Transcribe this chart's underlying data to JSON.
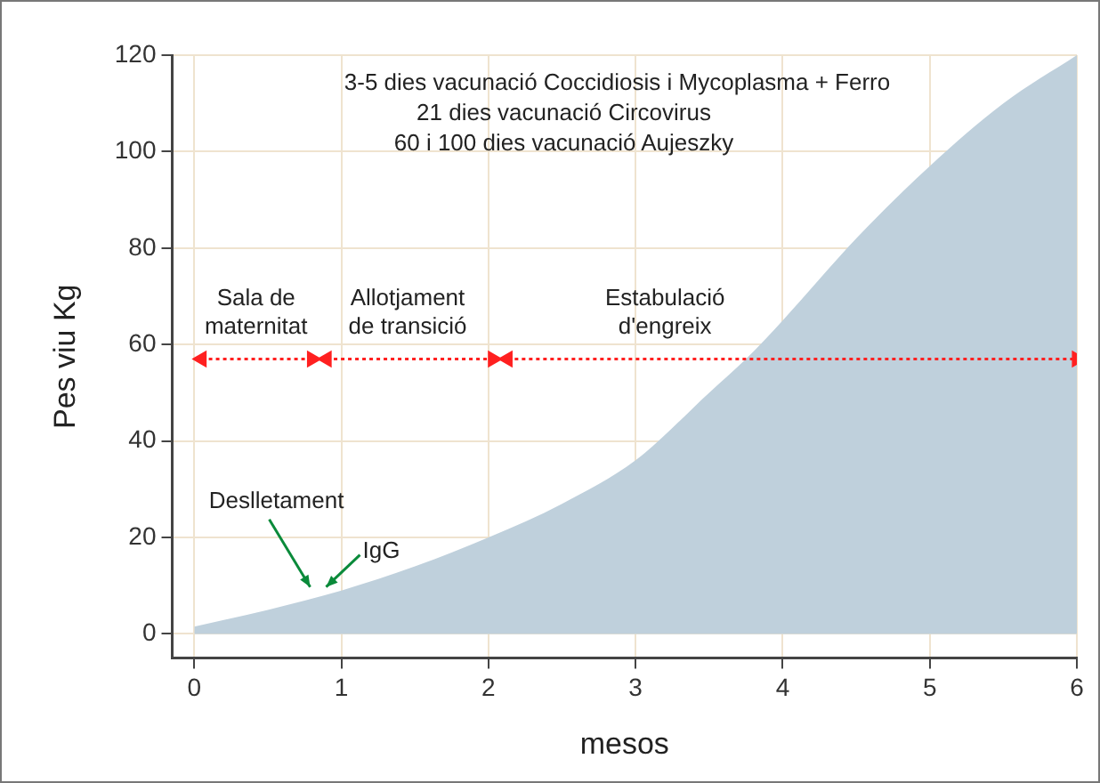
{
  "chart_data": {
    "type": "area",
    "xlabel": "mesos",
    "ylabel": "Pes viu Kg",
    "xlim": [
      -0.15,
      6
    ],
    "ylim": [
      -5,
      120
    ],
    "xticks": [
      0,
      1,
      2,
      3,
      4,
      5,
      6
    ],
    "yticks": [
      0,
      20,
      40,
      60,
      80,
      100,
      120
    ],
    "grid": true,
    "series": [
      {
        "type": "area",
        "color": "#bfd0dc",
        "x": [
          0,
          0.5,
          1,
          1.5,
          2,
          2.5,
          3,
          3.5,
          3.75,
          4,
          4.5,
          5,
          5.5,
          6
        ],
        "values": [
          1.5,
          5,
          9,
          14,
          20,
          27,
          36,
          50,
          57,
          65,
          82,
          97,
          110,
          120
        ]
      },
      {
        "type": "line",
        "color": "#ff2020",
        "line_style": "dotted",
        "marker": "triangle",
        "x": [
          0.05,
          0.8
        ],
        "values": [
          57,
          57
        ]
      },
      {
        "type": "line",
        "color": "#ff2020",
        "line_style": "dotted",
        "marker": "triangle",
        "x": [
          0.9,
          2.03
        ],
        "values": [
          57,
          57
        ]
      },
      {
        "type": "line",
        "color": "#ff2020",
        "line_style": "dotted",
        "marker": "triangle",
        "x": [
          2.13,
          6
        ],
        "values": [
          57,
          57
        ]
      }
    ],
    "annotations": [
      "3-5 dies vacunació Coccidiosis i Mycoplasma + Ferro",
      "21 dies vacunació Circovirus",
      "60 i 100 dies vacunació Aujeszky",
      {
        "text": "Sala de maternitat",
        "x": 0.42,
        "y": 57
      },
      {
        "text": "Allotjament de transició",
        "x": 1.45,
        "y": 57
      },
      {
        "text": "Estabulació d'engreix",
        "x": 3.2,
        "y": 57
      },
      {
        "text": "Deslletament",
        "x": 0.8,
        "y": 9
      },
      {
        "text": "IgG",
        "x": 0.86,
        "y": 9
      }
    ]
  }
}
